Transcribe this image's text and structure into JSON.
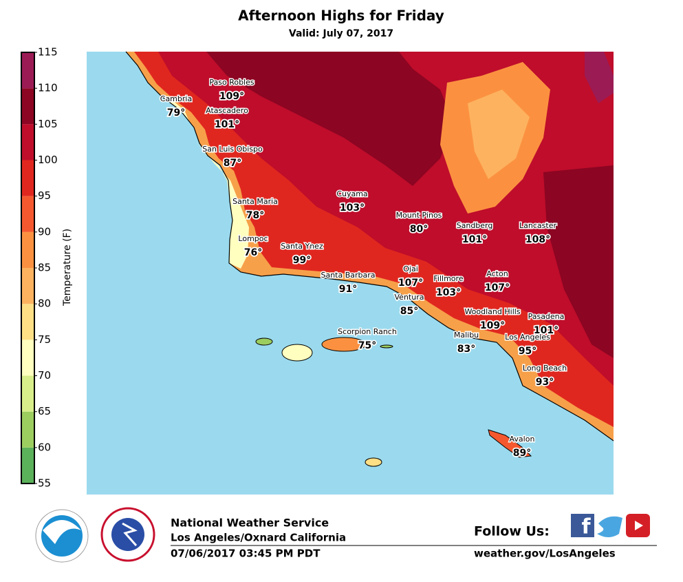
{
  "header": {
    "title": "Afternoon Highs for Friday",
    "subtitle": "Valid: July 07, 2017"
  },
  "colorbar": {
    "label": "Temperature (F)",
    "ticks": [
      55,
      60,
      65,
      70,
      75,
      80,
      85,
      90,
      95,
      100,
      105,
      110,
      115
    ],
    "colors": [
      "#5bb05a",
      "#9ccd5f",
      "#d8ee8a",
      "#ffffbf",
      "#fedf85",
      "#fdb25f",
      "#fb9140",
      "#f5582f",
      "#e0271f",
      "#bf0d2b",
      "#8c0522",
      "#9b1b55"
    ]
  },
  "cities": [
    {
      "name": "Paso Robles",
      "temp": "109°"
    },
    {
      "name": "Cambria",
      "temp": "79°"
    },
    {
      "name": "Atascadero",
      "temp": "101°"
    },
    {
      "name": "San Luis Obispo",
      "temp": "87°"
    },
    {
      "name": "Cuyama",
      "temp": "103°"
    },
    {
      "name": "Santa Maria",
      "temp": "78°"
    },
    {
      "name": "Mount Pinos",
      "temp": "80°"
    },
    {
      "name": "Sandberg",
      "temp": "101°"
    },
    {
      "name": "Lancaster",
      "temp": "108°"
    },
    {
      "name": "Lompoc",
      "temp": "76°"
    },
    {
      "name": "Santa Ynez",
      "temp": "99°"
    },
    {
      "name": "Santa Barbara",
      "temp": "91°"
    },
    {
      "name": "Ojai",
      "temp": "107°"
    },
    {
      "name": "Fillmore",
      "temp": "103°"
    },
    {
      "name": "Acton",
      "temp": "107°"
    },
    {
      "name": "Ventura",
      "temp": "85°"
    },
    {
      "name": "Woodland Hills",
      "temp": "109°"
    },
    {
      "name": "Pasadena",
      "temp": "101°"
    },
    {
      "name": "Malibu",
      "temp": "83°"
    },
    {
      "name": "Los Angeles",
      "temp": "95°"
    },
    {
      "name": "Scorpion Ranch",
      "temp": "75°"
    },
    {
      "name": "Long Beach",
      "temp": "93°"
    },
    {
      "name": "Avalon",
      "temp": "89°"
    }
  ],
  "footer": {
    "org": "National Weather Service",
    "office": "Los Angeles/Oxnard California",
    "issued": "07/06/2017 03:45 PM PDT",
    "follow": "Follow Us:",
    "url": "weather.gov/LosAngeles"
  }
}
